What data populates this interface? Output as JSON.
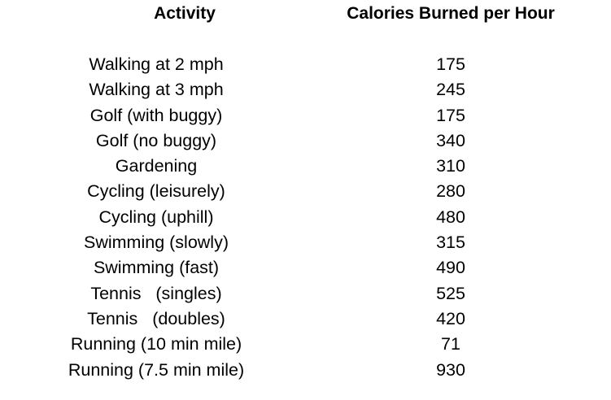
{
  "table": {
    "headers": {
      "activity": "Activity",
      "calories": "Calories Burned per Hour"
    },
    "rows": [
      {
        "activity": "Walking at 2 mph",
        "calories": "175"
      },
      {
        "activity": "Walking at 3 mph",
        "calories": "245"
      },
      {
        "activity": "Golf (with buggy)",
        "calories": "175"
      },
      {
        "activity": "Golf (no buggy)",
        "calories": "340"
      },
      {
        "activity": "Gardening",
        "calories": "310"
      },
      {
        "activity": "Cycling (leisurely)",
        "calories": "280"
      },
      {
        "activity": "Cycling (uphill)",
        "calories": "480"
      },
      {
        "activity": "Swimming (slowly)",
        "calories": "315"
      },
      {
        "activity": "Swimming (fast)",
        "calories": "490"
      },
      {
        "activity": "Tennis   (singles)",
        "calories": "525"
      },
      {
        "activity": "Tennis   (doubles)",
        "calories": "420"
      },
      {
        "activity": "Running (10 min mile)",
        "calories": "71"
      },
      {
        "activity": "Running (7.5 min mile)",
        "calories": "930"
      }
    ]
  }
}
